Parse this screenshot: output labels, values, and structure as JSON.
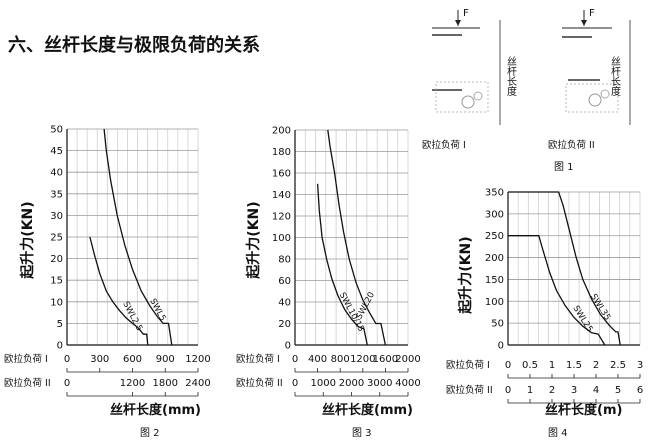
{
  "section_title": "六、丝杆长度与极限负荷的关系",
  "fig1": {
    "caption": "图 1",
    "force_label": "F",
    "length_label": "丝杆长度",
    "panels": [
      {
        "label": "欧拉负荷 I"
      },
      {
        "label": "欧拉负荷 II"
      }
    ]
  },
  "chart_data": [
    {
      "type": "line",
      "caption": "图 2",
      "ylabel": "起升力(KN)",
      "xlabel": "丝杆长度(mm)",
      "ylim": [
        0,
        50
      ],
      "y_ticks": [
        0,
        5,
        10,
        15,
        20,
        25,
        30,
        35,
        40,
        45,
        50
      ],
      "grid": true,
      "x_axes": [
        {
          "label": "欧拉负荷 I",
          "range": [
            0,
            1200
          ],
          "ticks": [
            0,
            300,
            600,
            900,
            1200
          ]
        },
        {
          "label": "欧拉负荷 II",
          "range": [
            0,
            2400
          ],
          "ticks": [
            0,
            1200,
            1800,
            2400
          ],
          "tick_pos": [
            0,
            600,
            900,
            1200
          ]
        }
      ],
      "series": [
        {
          "name": "SWL5",
          "x": [
            340,
            360,
            400,
            460,
            530,
            600,
            680,
            760,
            830,
            880,
            930,
            960
          ],
          "y": [
            50,
            45,
            38,
            30,
            23,
            17.5,
            12.5,
            9,
            6.5,
            5,
            5,
            0
          ]
        },
        {
          "name": "SWL2.5",
          "x": [
            210,
            250,
            300,
            360,
            420,
            480,
            540,
            600,
            650,
            700,
            730,
            740
          ],
          "y": [
            25,
            21,
            16.5,
            12.5,
            10,
            8,
            6.3,
            5,
            4,
            2.5,
            2.5,
            0
          ]
        }
      ]
    },
    {
      "type": "line",
      "caption": "图 3",
      "ylabel": "起升力(KN)",
      "xlabel": "丝杆长度(mm)",
      "ylim": [
        0,
        200
      ],
      "y_ticks": [
        0,
        20,
        40,
        60,
        80,
        100,
        120,
        140,
        160,
        180,
        200
      ],
      "grid": true,
      "x_axes": [
        {
          "label": "欧拉负荷 I",
          "range": [
            0,
            2000
          ],
          "ticks": [
            0,
            400,
            800,
            1200,
            1600,
            2000
          ],
          "tick_text": [
            "0",
            "400",
            "800",
            "1200",
            "1600",
            "2000"
          ]
        },
        {
          "label": "欧拉负荷 II",
          "range": [
            0,
            4000
          ],
          "ticks": [
            0,
            1000,
            2000,
            3000,
            4000
          ],
          "tick_pos": [
            0,
            500,
            1000,
            1500,
            2000
          ]
        }
      ],
      "series": [
        {
          "name": "SWL20",
          "x": [
            580,
            620,
            700,
            780,
            860,
            960,
            1080,
            1200,
            1320,
            1430,
            1520,
            1600
          ],
          "y": [
            200,
            185,
            160,
            130,
            105,
            80,
            58,
            42,
            30,
            20,
            20,
            0
          ]
        },
        {
          "name": "SWL10/15",
          "x": [
            400,
            430,
            480,
            560,
            650,
            760,
            880,
            1000,
            1120,
            1220,
            1280
          ],
          "y": [
            150,
            125,
            100,
            80,
            62,
            46,
            33,
            24,
            17,
            15,
            0
          ]
        }
      ]
    },
    {
      "type": "line",
      "caption": "图 4",
      "ylabel": "起升力(KN)",
      "xlabel": "丝杆长度(m)",
      "ylim": [
        0,
        350
      ],
      "y_ticks": [
        0,
        50,
        100,
        150,
        200,
        250,
        300,
        350
      ],
      "grid": true,
      "x_axes": [
        {
          "label": "欧拉负荷 I",
          "range": [
            0,
            3
          ],
          "ticks": [
            0,
            0.5,
            1,
            1.5,
            2,
            2.5,
            3
          ],
          "tick_text": [
            "0",
            "0.5",
            "1",
            "1.5",
            "2",
            "2.5",
            "3"
          ]
        },
        {
          "label": "欧拉负荷 II",
          "range": [
            0,
            6
          ],
          "ticks": [
            0,
            1,
            2,
            3,
            4,
            5,
            6
          ],
          "tick_pos": [
            0,
            0.5,
            1,
            1.5,
            2,
            2.5,
            3
          ]
        }
      ],
      "series": [
        {
          "name": "SWL35",
          "x": [
            0,
            1.15,
            1.25,
            1.4,
            1.55,
            1.7,
            1.9,
            2.1,
            2.3,
            2.45,
            2.5,
            2.55
          ],
          "y": [
            350,
            350,
            320,
            260,
            200,
            150,
            105,
            70,
            45,
            30,
            30,
            0
          ]
        },
        {
          "name": "SWL25",
          "x": [
            0,
            0.7,
            0.8,
            0.95,
            1.1,
            1.3,
            1.5,
            1.7,
            1.9,
            2.05,
            2.2
          ],
          "y": [
            250,
            250,
            215,
            165,
            125,
            90,
            63,
            43,
            28,
            25,
            0
          ]
        }
      ]
    }
  ]
}
